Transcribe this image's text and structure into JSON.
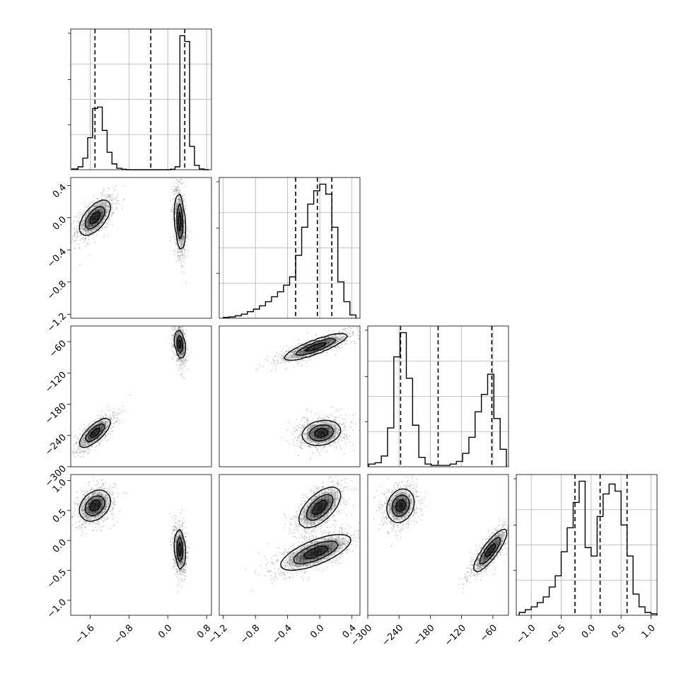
{
  "chart_data": {
    "type": "corner",
    "title": "",
    "parameters": [
      {
        "name": "",
        "range": [
          -2.0,
          0.9
        ],
        "ticks": [
          -1.6,
          -0.8,
          0.0,
          0.8
        ],
        "tick_labels": [
          "−1.6",
          "−0.8",
          "0.0",
          "0.8"
        ],
        "quantile_lines": [
          -1.5,
          -0.35,
          0.35
        ]
      },
      {
        "name": "",
        "range": [
          -1.25,
          0.5
        ],
        "ticks": [
          -1.2,
          -0.8,
          -0.4,
          0.0,
          0.4
        ],
        "tick_labels": [
          "−1.2",
          "−0.8",
          "−0.4",
          "0.0",
          "0.4"
        ],
        "quantile_lines": [
          -0.3,
          -0.03,
          0.15
        ]
      },
      {
        "name": "",
        "range": [
          -300,
          -30
        ],
        "ticks": [
          -300,
          -240,
          -180,
          -120,
          -60
        ],
        "tick_labels": [
          "−300",
          "−240",
          "−180",
          "−120",
          "−60"
        ],
        "quantile_lines": [
          -237,
          -165,
          -62
        ]
      },
      {
        "name": "",
        "range": [
          -1.25,
          1.1
        ],
        "ticks": [
          -1.0,
          -0.5,
          0.0,
          0.5,
          1.0
        ],
        "tick_labels": [
          "−1.0",
          "−0.5",
          "0.0",
          "0.5",
          "1.0"
        ],
        "quantile_lines": [
          -0.27,
          0.15,
          0.6
        ]
      }
    ],
    "histograms": [
      {
        "bin_edges": [
          -1.975,
          -1.85,
          -1.75,
          -1.65,
          -1.55,
          -1.45,
          -1.35,
          -1.25,
          -1.15,
          -1.05,
          -0.95,
          -0.85,
          -0.75,
          -0.65,
          -0.55,
          -0.45,
          -0.35,
          -0.25,
          -0.15,
          -0.05,
          0.05,
          0.15,
          0.25,
          0.35,
          0.45,
          0.55,
          0.65,
          0.75,
          0.85
        ],
        "counts": [
          0.005,
          0.02,
          0.08,
          0.22,
          0.42,
          0.43,
          0.27,
          0.12,
          0.04,
          0.01,
          0.003,
          0.0,
          0.0,
          0.0,
          0.0,
          0.0,
          0.0,
          0.0,
          0.0,
          0.0,
          0.003,
          0.02,
          0.92,
          0.88,
          0.16,
          0.03,
          0.005,
          0.0
        ]
      },
      {
        "bin_edges": [
          -1.2,
          -1.125,
          -1.05,
          -0.975,
          -0.9,
          -0.825,
          -0.75,
          -0.675,
          -0.6,
          -0.525,
          -0.45,
          -0.375,
          -0.3,
          -0.225,
          -0.15,
          -0.075,
          0.0,
          0.075,
          0.15,
          0.225,
          0.3,
          0.375,
          0.45
        ],
        "counts": [
          0.005,
          0.008,
          0.015,
          0.025,
          0.04,
          0.055,
          0.075,
          0.1,
          0.13,
          0.16,
          0.2,
          0.25,
          0.38,
          0.55,
          0.69,
          0.77,
          0.81,
          0.75,
          0.55,
          0.22,
          0.1,
          0.02
        ]
      },
      {
        "bin_edges": [
          -298,
          -286,
          -274,
          -262,
          -250,
          -238,
          -226,
          -214,
          -202,
          -190,
          -178,
          -166,
          -154,
          -142,
          -130,
          -118,
          -106,
          -94,
          -82,
          -70,
          -58,
          -46,
          -34
        ],
        "counts": [
          0.02,
          0.03,
          0.08,
          0.29,
          0.82,
          1.0,
          0.66,
          0.31,
          0.07,
          0.02,
          0.01,
          0.01,
          0.01,
          0.02,
          0.04,
          0.1,
          0.22,
          0.41,
          0.54,
          0.69,
          0.36,
          0.13
        ]
      },
      {
        "bin_edges": [
          -1.2,
          -1.1,
          -1.0,
          -0.9,
          -0.8,
          -0.7,
          -0.6,
          -0.5,
          -0.4,
          -0.3,
          -0.2,
          -0.1,
          0.0,
          0.1,
          0.2,
          0.3,
          0.4,
          0.5,
          0.6,
          0.7,
          0.8,
          0.9,
          1.0,
          1.1
        ],
        "counts": [
          0.02,
          0.04,
          0.06,
          0.09,
          0.13,
          0.2,
          0.28,
          0.45,
          0.62,
          0.8,
          0.95,
          0.48,
          0.42,
          0.7,
          0.86,
          0.93,
          0.88,
          0.64,
          0.42,
          0.15,
          0.06,
          0.02,
          0.01
        ]
      }
    ],
    "pairs": [
      {
        "x": 0,
        "y": 1,
        "modes": [
          {
            "mx": -1.5,
            "my": 0.0,
            "sx": 0.16,
            "sy": 0.11,
            "rho": 0.6,
            "w": 0.5
          },
          {
            "mx": 0.25,
            "my": -0.05,
            "sx": 0.05,
            "sy": 0.18,
            "rho": -0.3,
            "w": 0.5
          }
        ]
      },
      {
        "x": 0,
        "y": 2,
        "modes": [
          {
            "mx": -1.5,
            "my": -235,
            "sx": 0.16,
            "sy": 14,
            "rho": 0.75,
            "w": 0.5
          },
          {
            "mx": 0.25,
            "my": -65,
            "sx": 0.05,
            "sy": 14,
            "rho": -0.3,
            "w": 0.5
          }
        ]
      },
      {
        "x": 0,
        "y": 3,
        "modes": [
          {
            "mx": -1.5,
            "my": 0.58,
            "sx": 0.16,
            "sy": 0.13,
            "rho": 0.3,
            "w": 0.5
          },
          {
            "mx": 0.25,
            "my": -0.15,
            "sx": 0.05,
            "sy": 0.17,
            "rho": -0.2,
            "w": 0.5
          }
        ]
      },
      {
        "x": 1,
        "y": 2,
        "modes": [
          {
            "mx": -0.05,
            "my": -70,
            "sx": 0.2,
            "sy": 13,
            "rho": 0.85,
            "w": 0.5
          },
          {
            "mx": 0.02,
            "my": -235,
            "sx": 0.12,
            "sy": 12,
            "rho": 0.2,
            "w": 0.5
          }
        ]
      },
      {
        "x": 1,
        "y": 3,
        "modes": [
          {
            "mx": 0.0,
            "my": 0.55,
            "sx": 0.13,
            "sy": 0.17,
            "rho": 0.6,
            "w": 0.5
          },
          {
            "mx": -0.05,
            "my": -0.2,
            "sx": 0.22,
            "sy": 0.15,
            "rho": 0.7,
            "w": 0.5
          }
        ]
      },
      {
        "x": 2,
        "y": 3,
        "modes": [
          {
            "mx": -237,
            "my": 0.58,
            "sx": 13,
            "sy": 0.14,
            "rho": 0.2,
            "w": 0.5
          },
          {
            "mx": -65,
            "my": -0.17,
            "sx": 16,
            "sy": 0.18,
            "rho": 0.85,
            "w": 0.5
          }
        ]
      }
    ],
    "grid": true,
    "contour_levels": [
      0.14,
      0.45,
      0.78
    ],
    "colors": {
      "line": "#000000",
      "density": "#000000",
      "grid": "#b0b0b0",
      "points": "#777777"
    }
  }
}
